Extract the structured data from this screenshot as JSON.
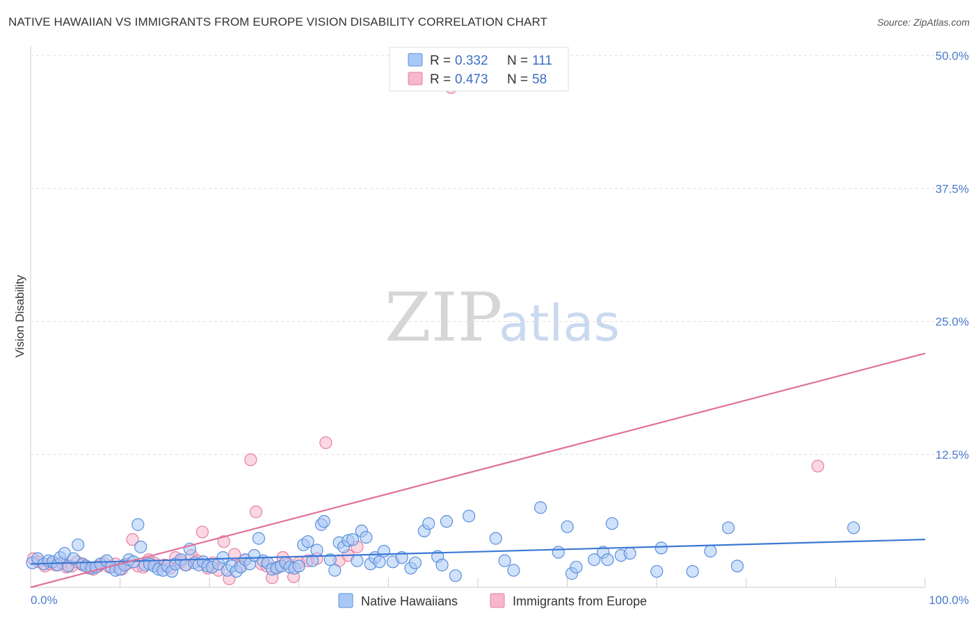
{
  "title": "NATIVE HAWAIIAN VS IMMIGRANTS FROM EUROPE VISION DISABILITY CORRELATION CHART",
  "source": "Source: ZipAtlas.com",
  "watermark": {
    "part1": "ZIP",
    "part2": "atlas"
  },
  "colors": {
    "blue_fill": "#a9c8f5",
    "blue_stroke": "#5a8fdc",
    "blue_line": "#3a78d4",
    "pink_fill": "#f7b7cc",
    "pink_stroke": "#e57fa2",
    "pink_line": "#e0709a"
  },
  "legend_top": {
    "rows": [
      {
        "r_label": "R = ",
        "r_value": "0.332",
        "n_label": "N = ",
        "n_value": "111"
      },
      {
        "r_label": "R = ",
        "r_value": "0.473",
        "n_label": "N = ",
        "n_value": "58"
      }
    ]
  },
  "chart_data": {
    "type": "scatter",
    "title": "NATIVE HAWAIIAN VS IMMIGRANTS FROM EUROPE VISION DISABILITY CORRELATION CHART",
    "xlabel": "",
    "ylabel": "Vision Disability",
    "xlim": [
      0,
      100
    ],
    "ylim": [
      0,
      50
    ],
    "x_tick_labels": [
      "0.0%",
      "100.0%"
    ],
    "y_ticks": [
      12.5,
      25.0,
      37.5,
      50.0
    ],
    "y_tick_labels": [
      "12.5%",
      "25.0%",
      "37.5%",
      "50.0%"
    ],
    "legend_position": "top-center",
    "series": [
      {
        "name": "Native Hawaiians",
        "trend": {
          "x0": 0,
          "y0": 2.2,
          "x1": 100,
          "y1": 4.5
        },
        "points": [
          [
            0.2,
            2.3
          ],
          [
            0.8,
            2.7
          ],
          [
            1.5,
            2.2
          ],
          [
            2.0,
            2.5
          ],
          [
            2.5,
            2.4
          ],
          [
            3.0,
            2.1
          ],
          [
            3.3,
            2.8
          ],
          [
            3.8,
            3.2
          ],
          [
            4.2,
            2.0
          ],
          [
            4.8,
            2.7
          ],
          [
            5.3,
            4.0
          ],
          [
            5.8,
            2.2
          ],
          [
            6.2,
            2.0
          ],
          [
            6.8,
            1.8
          ],
          [
            7.3,
            1.9
          ],
          [
            7.8,
            2.2
          ],
          [
            8.5,
            2.5
          ],
          [
            9.0,
            1.9
          ],
          [
            9.5,
            1.6
          ],
          [
            10.0,
            1.7
          ],
          [
            10.5,
            2.1
          ],
          [
            11.0,
            2.6
          ],
          [
            11.5,
            2.4
          ],
          [
            12.0,
            5.9
          ],
          [
            12.3,
            3.8
          ],
          [
            12.8,
            2.1
          ],
          [
            13.3,
            2.2
          ],
          [
            13.8,
            2.0
          ],
          [
            14.3,
            1.7
          ],
          [
            14.8,
            1.6
          ],
          [
            15.3,
            2.0
          ],
          [
            15.8,
            1.5
          ],
          [
            16.2,
            2.2
          ],
          [
            16.8,
            2.6
          ],
          [
            17.3,
            2.1
          ],
          [
            17.8,
            3.6
          ],
          [
            18.3,
            2.3
          ],
          [
            18.8,
            2.1
          ],
          [
            19.3,
            2.4
          ],
          [
            19.8,
            2.0
          ],
          [
            20.3,
            1.9
          ],
          [
            21.0,
            2.2
          ],
          [
            21.5,
            2.8
          ],
          [
            22.0,
            1.6
          ],
          [
            22.5,
            2.0
          ],
          [
            23.0,
            1.5
          ],
          [
            23.5,
            1.9
          ],
          [
            24.0,
            2.6
          ],
          [
            24.5,
            2.2
          ],
          [
            25.0,
            3.0
          ],
          [
            25.5,
            4.6
          ],
          [
            26.0,
            2.5
          ],
          [
            26.5,
            2.3
          ],
          [
            27.0,
            1.7
          ],
          [
            27.5,
            1.8
          ],
          [
            28.0,
            2.0
          ],
          [
            28.5,
            2.3
          ],
          [
            29.0,
            1.9
          ],
          [
            29.5,
            1.8
          ],
          [
            30.0,
            2.0
          ],
          [
            30.5,
            4.0
          ],
          [
            31.0,
            4.3
          ],
          [
            31.5,
            2.5
          ],
          [
            32.0,
            3.5
          ],
          [
            32.5,
            5.9
          ],
          [
            32.8,
            6.2
          ],
          [
            33.5,
            2.6
          ],
          [
            34.0,
            1.6
          ],
          [
            34.5,
            4.2
          ],
          [
            35.0,
            3.8
          ],
          [
            35.5,
            4.4
          ],
          [
            36.0,
            4.5
          ],
          [
            36.5,
            2.5
          ],
          [
            37.0,
            5.3
          ],
          [
            37.5,
            4.7
          ],
          [
            38.0,
            2.2
          ],
          [
            38.5,
            2.8
          ],
          [
            39.0,
            2.4
          ],
          [
            39.5,
            3.4
          ],
          [
            40.5,
            2.4
          ],
          [
            41.5,
            2.8
          ],
          [
            42.5,
            1.8
          ],
          [
            43.0,
            2.3
          ],
          [
            44.0,
            5.3
          ],
          [
            44.5,
            6.0
          ],
          [
            45.5,
            2.9
          ],
          [
            46.0,
            2.1
          ],
          [
            46.5,
            6.2
          ],
          [
            47.5,
            1.1
          ],
          [
            49.0,
            6.7
          ],
          [
            52.0,
            4.6
          ],
          [
            53.0,
            2.5
          ],
          [
            54.0,
            1.6
          ],
          [
            57.0,
            7.5
          ],
          [
            59.0,
            3.3
          ],
          [
            60.0,
            5.7
          ],
          [
            60.5,
            1.3
          ],
          [
            61.0,
            1.9
          ],
          [
            63.0,
            2.6
          ],
          [
            64.0,
            3.3
          ],
          [
            64.5,
            2.6
          ],
          [
            65.0,
            6.0
          ],
          [
            66.0,
            3.0
          ],
          [
            67.0,
            3.2
          ],
          [
            70.0,
            1.5
          ],
          [
            70.5,
            3.7
          ],
          [
            74.0,
            1.5
          ],
          [
            76.0,
            3.4
          ],
          [
            78.0,
            5.6
          ],
          [
            79.0,
            2.0
          ],
          [
            92.0,
            5.6
          ]
        ]
      },
      {
        "name": "Immigrants from Europe",
        "trend": {
          "x0": 0,
          "y0": 0.0,
          "x1": 100,
          "y1": 22.0
        },
        "points": [
          [
            0.3,
            2.7
          ],
          [
            0.9,
            2.4
          ],
          [
            1.6,
            2.0
          ],
          [
            2.2,
            2.2
          ],
          [
            2.8,
            2.1
          ],
          [
            3.5,
            2.3
          ],
          [
            4.0,
            1.9
          ],
          [
            4.6,
            2.0
          ],
          [
            5.2,
            2.4
          ],
          [
            5.8,
            2.1
          ],
          [
            6.5,
            1.8
          ],
          [
            7.0,
            1.7
          ],
          [
            7.6,
            2.0
          ],
          [
            8.2,
            2.3
          ],
          [
            8.8,
            1.9
          ],
          [
            9.5,
            2.2
          ],
          [
            10.2,
            1.7
          ],
          [
            10.8,
            2.2
          ],
          [
            11.4,
            4.5
          ],
          [
            12.0,
            2.0
          ],
          [
            12.6,
            1.9
          ],
          [
            13.2,
            2.6
          ],
          [
            13.8,
            2.3
          ],
          [
            14.4,
            2.0
          ],
          [
            15.0,
            2.1
          ],
          [
            15.6,
            1.8
          ],
          [
            16.2,
            2.8
          ],
          [
            16.8,
            2.4
          ],
          [
            17.4,
            2.1
          ],
          [
            18.0,
            3.0
          ],
          [
            18.6,
            2.5
          ],
          [
            19.2,
            5.2
          ],
          [
            19.8,
            1.8
          ],
          [
            20.4,
            2.3
          ],
          [
            21.0,
            1.6
          ],
          [
            21.6,
            4.3
          ],
          [
            22.2,
            0.8
          ],
          [
            22.8,
            3.1
          ],
          [
            23.4,
            2.0
          ],
          [
            24.0,
            2.6
          ],
          [
            24.6,
            12.0
          ],
          [
            25.2,
            7.1
          ],
          [
            25.8,
            2.2
          ],
          [
            26.4,
            2.0
          ],
          [
            27.0,
            0.9
          ],
          [
            27.6,
            1.9
          ],
          [
            28.2,
            2.8
          ],
          [
            28.8,
            2.2
          ],
          [
            29.4,
            1.0
          ],
          [
            30.0,
            2.3
          ],
          [
            31.0,
            2.5
          ],
          [
            32.0,
            2.7
          ],
          [
            33.0,
            13.6
          ],
          [
            34.5,
            2.5
          ],
          [
            35.5,
            3.0
          ],
          [
            36.5,
            3.8
          ],
          [
            47.0,
            47.0
          ],
          [
            88.0,
            11.4
          ]
        ]
      }
    ]
  },
  "legend_bottom": {
    "items": [
      {
        "label": "Native Hawaiians"
      },
      {
        "label": "Immigrants from Europe"
      }
    ]
  }
}
